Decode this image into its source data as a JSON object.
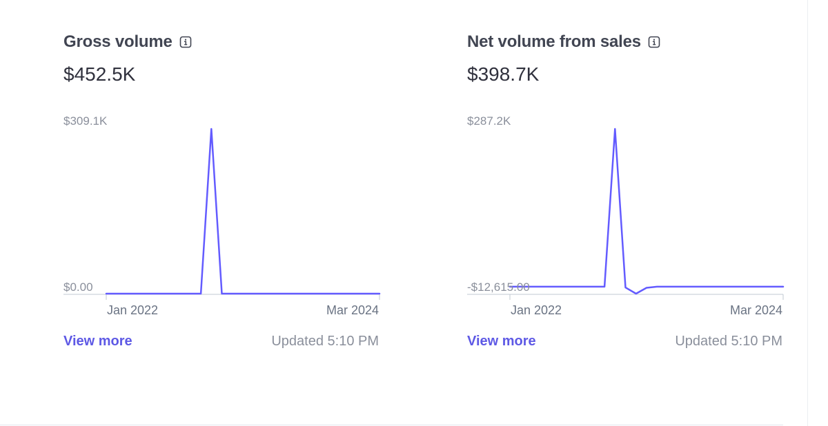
{
  "colors": {
    "accent": "#635bff",
    "link": "#5e59e5",
    "title": "#414552",
    "muted": "#8a8f9b",
    "axis": "#c0c8d2"
  },
  "info_icon": "info-icon",
  "cards": [
    {
      "title": "Gross volume",
      "value": "$452.5K",
      "view_more": "View more",
      "updated": "Updated 5:10 PM"
    },
    {
      "title": "Net volume from sales",
      "value": "$398.7K",
      "view_more": "View more",
      "updated": "Updated 5:10 PM"
    }
  ],
  "chart_data": [
    {
      "type": "line",
      "series": [
        {
          "x": [
            "2022-01",
            "2022-02",
            "2022-03",
            "2022-04",
            "2022-05",
            "2022-06",
            "2022-07",
            "2022-08",
            "2022-09",
            "2022-10",
            "2022-11",
            "2022-12",
            "2023-01",
            "2023-02",
            "2023-03",
            "2023-04",
            "2023-05",
            "2023-06",
            "2023-07",
            "2023-08",
            "2023-09",
            "2023-10",
            "2023-11",
            "2023-12",
            "2024-01",
            "2024-02",
            "2024-03"
          ],
          "values": [
            0,
            0,
            0,
            0,
            0,
            0,
            0,
            0,
            0,
            0,
            309100,
            0,
            0,
            0,
            0,
            0,
            0,
            0,
            0,
            0,
            0,
            0,
            0,
            0,
            0,
            0,
            0
          ]
        }
      ],
      "x_tick_labels": [
        "Jan 2022",
        "Mar 2024"
      ],
      "y_tick_labels": [
        "$309.1K",
        "$0.00"
      ],
      "ylim": [
        0,
        309100
      ],
      "grid": false
    },
    {
      "type": "line",
      "series": [
        {
          "x": [
            "2022-01",
            "2022-02",
            "2022-03",
            "2022-04",
            "2022-05",
            "2022-06",
            "2022-07",
            "2022-08",
            "2022-09",
            "2022-10",
            "2022-11",
            "2022-12",
            "2023-01",
            "2023-02",
            "2023-03",
            "2023-04",
            "2023-05",
            "2023-06",
            "2023-07",
            "2023-08",
            "2023-09",
            "2023-10",
            "2023-11",
            "2023-12",
            "2024-01",
            "2024-02",
            "2024-03"
          ],
          "values": [
            0,
            0,
            0,
            0,
            0,
            0,
            0,
            0,
            0,
            0,
            287200,
            -1500,
            -12615,
            -2000,
            0,
            0,
            0,
            0,
            0,
            0,
            0,
            0,
            0,
            0,
            0,
            0,
            0
          ]
        }
      ],
      "x_tick_labels": [
        "Jan 2022",
        "Mar 2024"
      ],
      "y_tick_labels": [
        "$287.2K",
        "-$12,615.00"
      ],
      "ylim": [
        -12615,
        287200
      ],
      "grid": false
    }
  ]
}
